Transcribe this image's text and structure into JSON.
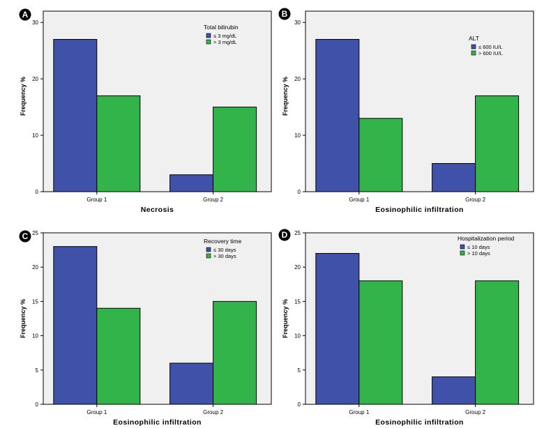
{
  "colors": {
    "series1": "#3F51A8",
    "series2": "#32B44A",
    "plot_bg": "#F0F0F0",
    "frame": "#000000"
  },
  "chart_data": [
    {
      "type": "bar",
      "panel_label": "A",
      "categories": [
        "Group 1",
        "Group 2"
      ],
      "series": [
        {
          "name": "≤ 3 mg/dL",
          "values": [
            27,
            3
          ]
        },
        {
          "name": "> 3 mg/dL",
          "values": [
            17,
            15
          ]
        }
      ],
      "legend_title": "Total bilirubin",
      "xlabel": "Necrosis",
      "ylabel": "Frequency %",
      "ylim": [
        0,
        32
      ],
      "yticks": [
        0,
        10,
        20,
        30
      ],
      "legend_position": "top-right"
    },
    {
      "type": "bar",
      "panel_label": "B",
      "categories": [
        "Group 1",
        "Group 2"
      ],
      "series": [
        {
          "name": "≤ 600 IU/L",
          "values": [
            27,
            5
          ]
        },
        {
          "name": "> 600 IU/L",
          "values": [
            13,
            17
          ]
        }
      ],
      "legend_title": "ALT",
      "xlabel": "Eosinophilic infiltration",
      "ylabel": "Frequency %",
      "ylim": [
        0,
        32
      ],
      "yticks": [
        0,
        10,
        20,
        30
      ],
      "legend_position": "top-right"
    },
    {
      "type": "bar",
      "panel_label": "C",
      "categories": [
        "Group 1",
        "Group 2"
      ],
      "series": [
        {
          "name": "≤ 30 days",
          "values": [
            23,
            6
          ]
        },
        {
          "name": "> 30 days",
          "values": [
            14,
            15
          ]
        }
      ],
      "legend_title": "Recovery time",
      "xlabel": "Eosinophilic infiltration",
      "ylabel": "Frequency %",
      "ylim": [
        0,
        25
      ],
      "yticks": [
        0,
        5,
        10,
        15,
        20,
        25
      ],
      "legend_position": "top-right"
    },
    {
      "type": "bar",
      "panel_label": "D",
      "categories": [
        "Group 1",
        "Group 2"
      ],
      "series": [
        {
          "name": "≤ 10 days",
          "values": [
            22,
            4
          ]
        },
        {
          "name": "> 10 days",
          "values": [
            18,
            18
          ]
        }
      ],
      "legend_title": "Hospitalization period",
      "xlabel": "Eosinophilic infiltration",
      "ylabel": "Frequency %",
      "ylim": [
        0,
        25
      ],
      "yticks": [
        0,
        5,
        10,
        15,
        20,
        25
      ],
      "legend_position": "top-right"
    }
  ]
}
